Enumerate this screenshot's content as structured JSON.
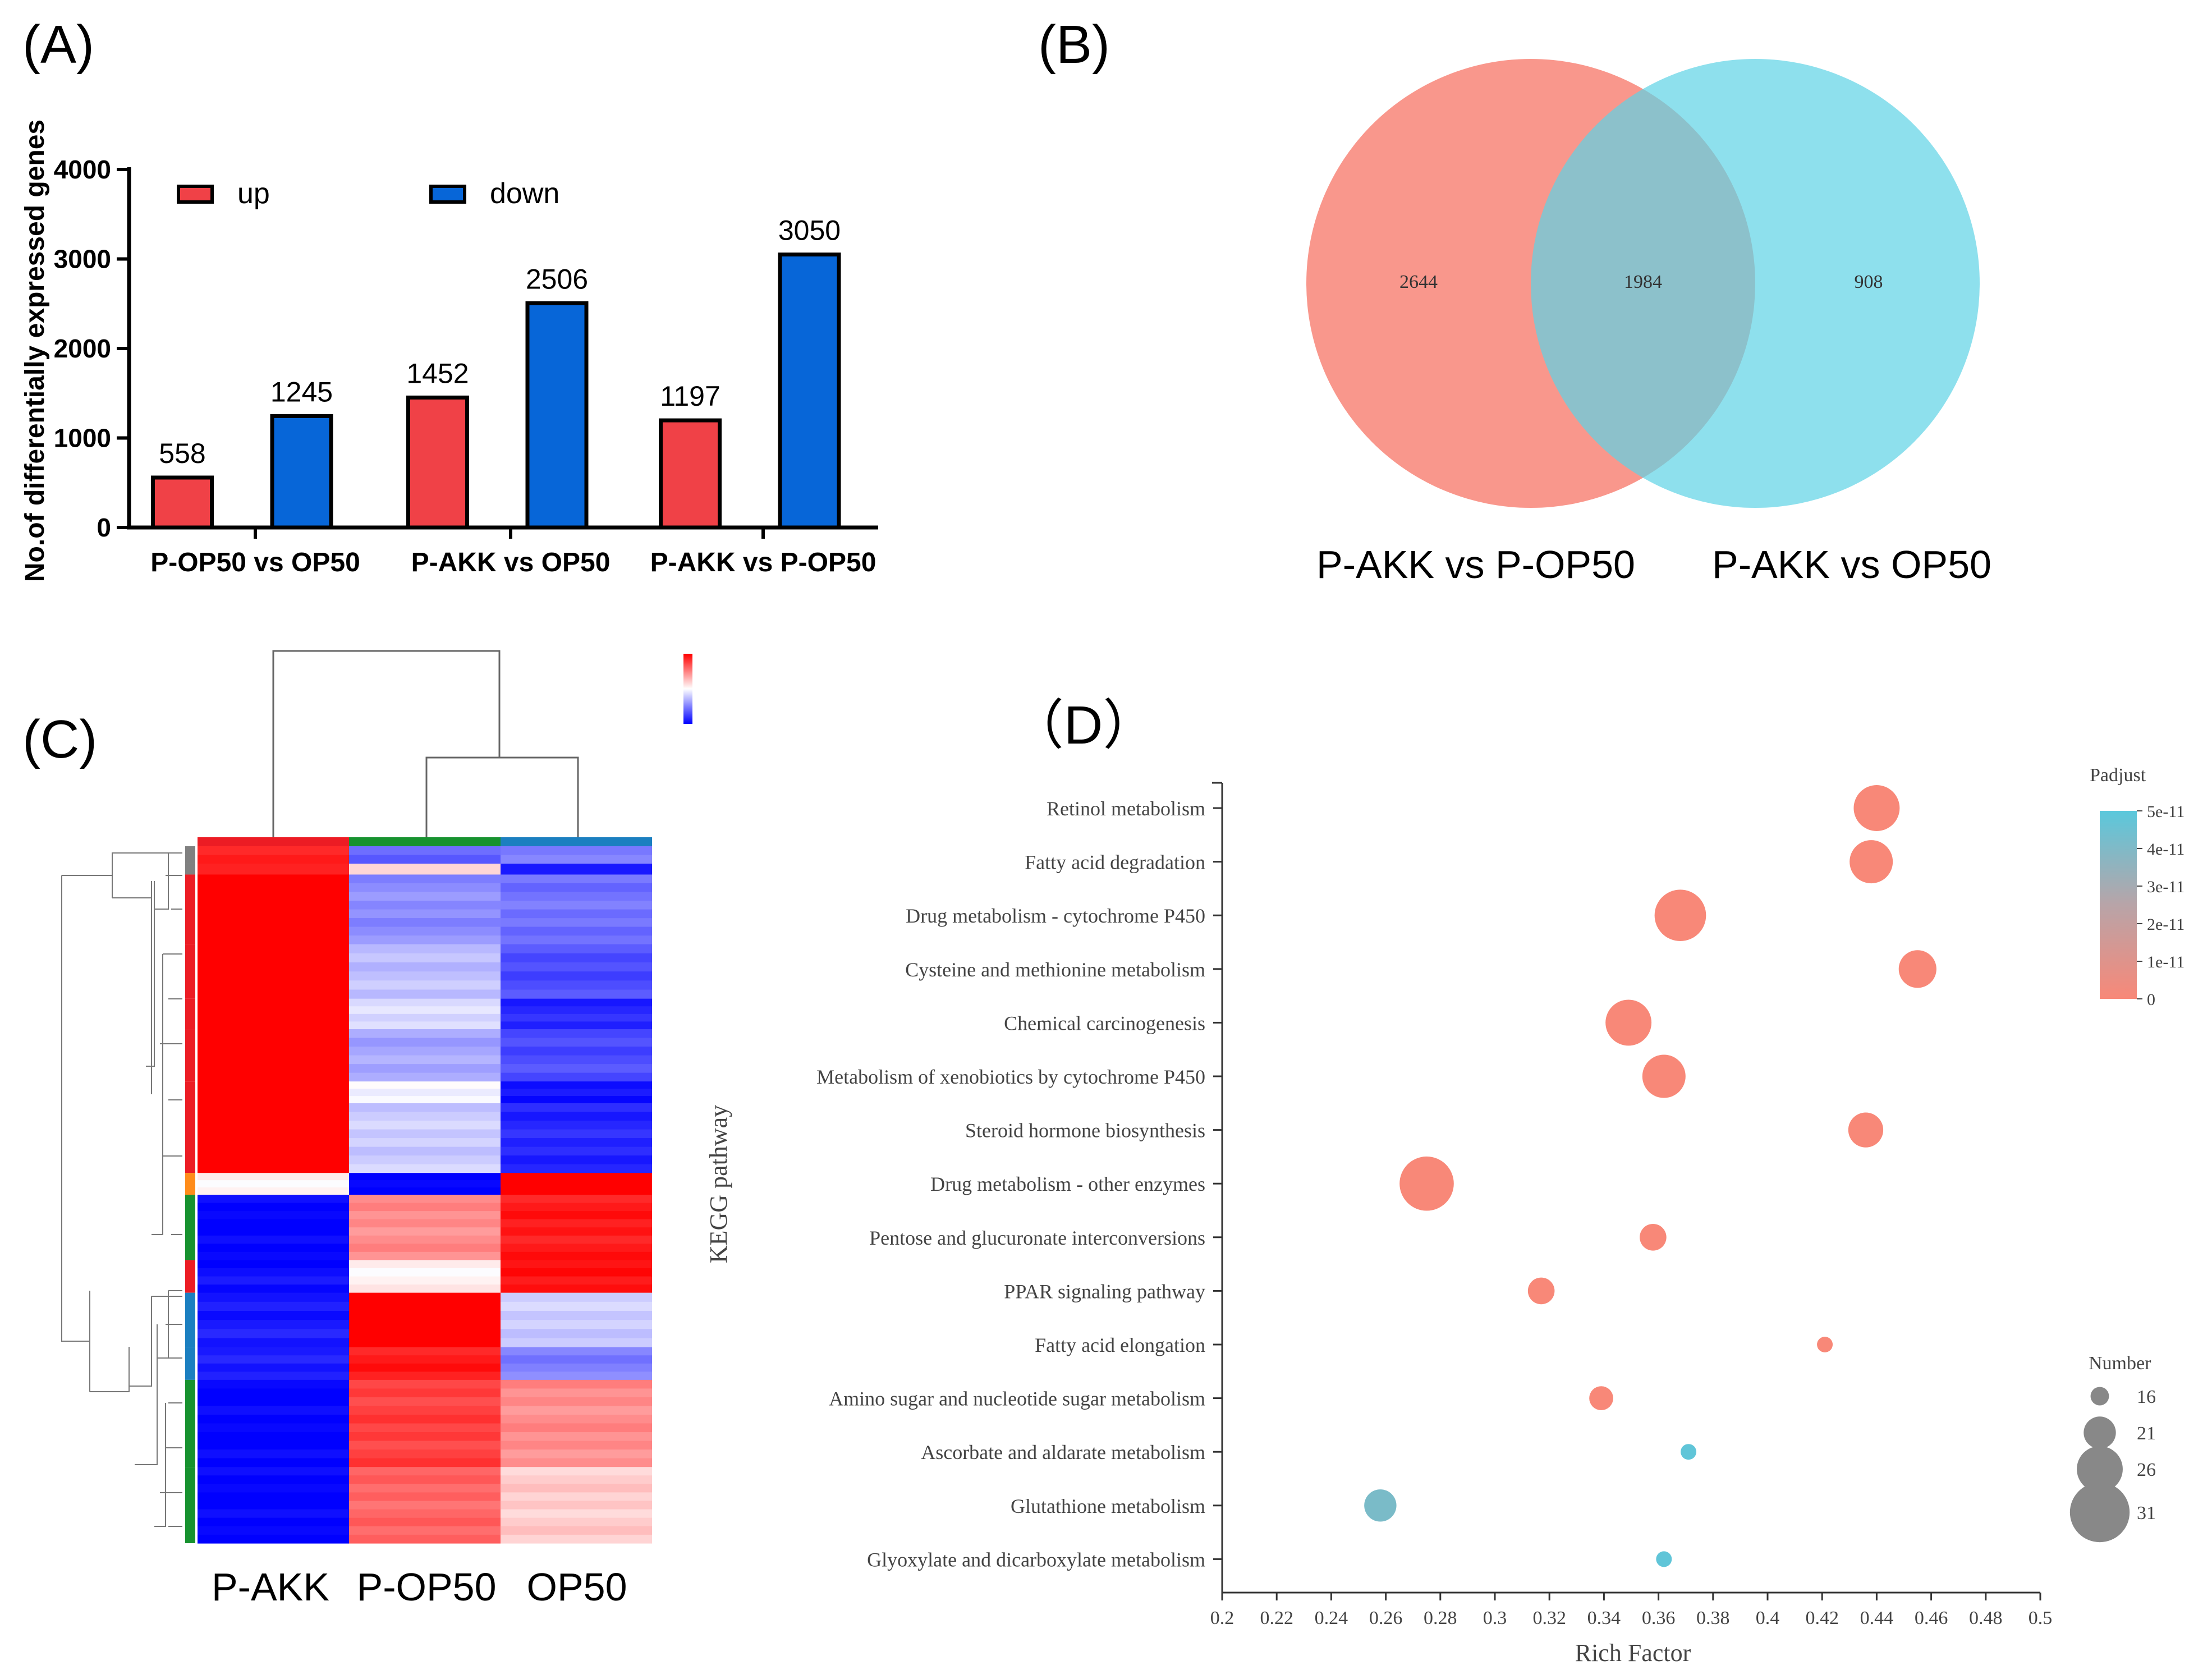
{
  "panels": {
    "a": "(A)",
    "b": "(B)",
    "c": "(C)",
    "d": "（D）"
  },
  "colors": {
    "up": "#f04147",
    "down": "#0766d8",
    "venn_left": "#f88c80",
    "venn_right": "#5ed3e5",
    "bubble_low": "#f88878",
    "bubble_high": "#5ac8dc"
  },
  "chart_data": [
    {
      "type": "bar",
      "ylabel": "No.of differentially expressed genes",
      "ylim": [
        0,
        4000
      ],
      "yticks": [
        0,
        1000,
        2000,
        3000,
        4000
      ],
      "categories": [
        "P-OP50 vs OP50",
        "P-AKK vs OP50",
        "P-AKK vs P-OP50"
      ],
      "series": [
        {
          "name": "up",
          "values": [
            558,
            1452,
            1197
          ]
        },
        {
          "name": "down",
          "values": [
            1245,
            2506,
            3050
          ]
        }
      ],
      "legend": "top-left"
    },
    {
      "type": "venn",
      "sets": [
        "P-AKK vs P-OP50",
        "P-AKK vs OP50"
      ],
      "only_left": "2644",
      "overlap": "1984",
      "only_right": "908"
    },
    {
      "type": "heatmap",
      "columns": [
        "P-AKK",
        "P-OP50",
        "OP50"
      ],
      "column_colors": [
        "#ec1c24",
        "#17922f",
        "#1b7fc0"
      ],
      "dendrogram": "rows and columns",
      "blocks": [
        {
          "rows": 8,
          "values": [
            0.9,
            -0.6,
            -0.5
          ]
        },
        {
          "rows": 5,
          "values": [
            0.9,
            0.1,
            -0.9
          ]
        },
        {
          "rows": 32,
          "values": [
            1.0,
            -0.45,
            -0.55
          ]
        },
        {
          "rows": 25,
          "values": [
            1.0,
            -0.25,
            -0.7
          ]
        },
        {
          "rows": 14,
          "values": [
            1.0,
            -0.15,
            -0.85
          ]
        },
        {
          "rows": 24,
          "values": [
            1.0,
            -0.35,
            -0.7
          ]
        },
        {
          "rows": 10,
          "values": [
            1.0,
            -0.05,
            -0.95
          ]
        },
        {
          "rows": 32,
          "values": [
            1.0,
            -0.2,
            -0.85
          ]
        },
        {
          "rows": 10,
          "values": [
            0.05,
            -1.0,
            1.0
          ]
        },
        {
          "rows": 30,
          "values": [
            -1.0,
            0.45,
            0.9
          ]
        },
        {
          "rows": 15,
          "values": [
            -0.95,
            0.05,
            0.95
          ]
        },
        {
          "rows": 25,
          "values": [
            -0.9,
            1.0,
            -0.2
          ]
        },
        {
          "rows": 15,
          "values": [
            -0.9,
            0.9,
            -0.5
          ]
        },
        {
          "rows": 40,
          "values": [
            -1.0,
            0.75,
            0.45
          ]
        },
        {
          "rows": 35,
          "values": [
            -1.0,
            0.6,
            0.2
          ]
        }
      ]
    },
    {
      "type": "scatter",
      "xlabel": "Rich Factor",
      "ylabel": "KEGG pathway",
      "xlim": [
        0.2,
        0.5
      ],
      "xticks": [
        "0.2",
        "0.22",
        "0.24",
        "0.26",
        "0.28",
        "0.3",
        "0.32",
        "0.34",
        "0.36",
        "0.38",
        "0.4",
        "0.42",
        "0.44",
        "0.46",
        "0.48",
        "0.5"
      ],
      "color_legend": {
        "title": "Padjust",
        "ticks": [
          "5e-11",
          "4e-11",
          "3e-11",
          "2e-11",
          "1e-11",
          "0"
        ],
        "max": 5e-11
      },
      "size_legend": {
        "title": "Number",
        "ticks": [
          16,
          21,
          26,
          31
        ]
      },
      "points": [
        {
          "pathway": "Retinol metabolism",
          "rich_factor": 0.44,
          "number": 26,
          "padjust": 0
        },
        {
          "pathway": "Fatty acid degradation",
          "rich_factor": 0.438,
          "number": 25,
          "padjust": 0
        },
        {
          "pathway": "Drug metabolism - cytochrome P450",
          "rich_factor": 0.368,
          "number": 28,
          "padjust": 0
        },
        {
          "pathway": "Cysteine and methionine metabolism",
          "rich_factor": 0.455,
          "number": 23,
          "padjust": 0
        },
        {
          "pathway": "Chemical carcinogenesis",
          "rich_factor": 0.349,
          "number": 26,
          "padjust": 0
        },
        {
          "pathway": "Metabolism of xenobiotics by cytochrome P450",
          "rich_factor": 0.362,
          "number": 25,
          "padjust": 0
        },
        {
          "pathway": "Steroid hormone biosynthesis",
          "rich_factor": 0.436,
          "number": 22,
          "padjust": 0
        },
        {
          "pathway": "Drug metabolism - other enzymes",
          "rich_factor": 0.275,
          "number": 29,
          "padjust": 0
        },
        {
          "pathway": "Pentose and glucuronate interconversions",
          "rich_factor": 0.358,
          "number": 19,
          "padjust": 0
        },
        {
          "pathway": "PPAR signaling pathway",
          "rich_factor": 0.317,
          "number": 19,
          "padjust": 0
        },
        {
          "pathway": "Fatty acid elongation",
          "rich_factor": 0.421,
          "number": 15,
          "padjust": 0
        },
        {
          "pathway": "Amino sugar and nucleotide sugar metabolism",
          "rich_factor": 0.339,
          "number": 18,
          "padjust": 0
        },
        {
          "pathway": "Ascorbate and aldarate metabolism",
          "rich_factor": 0.371,
          "number": 15,
          "padjust": 4.8e-11
        },
        {
          "pathway": "Glutathione metabolism",
          "rich_factor": 0.258,
          "number": 21,
          "padjust": 4e-11
        },
        {
          "pathway": "Glyoxylate and dicarboxylate metabolism",
          "rich_factor": 0.362,
          "number": 15,
          "padjust": 4.8e-11
        }
      ]
    }
  ]
}
